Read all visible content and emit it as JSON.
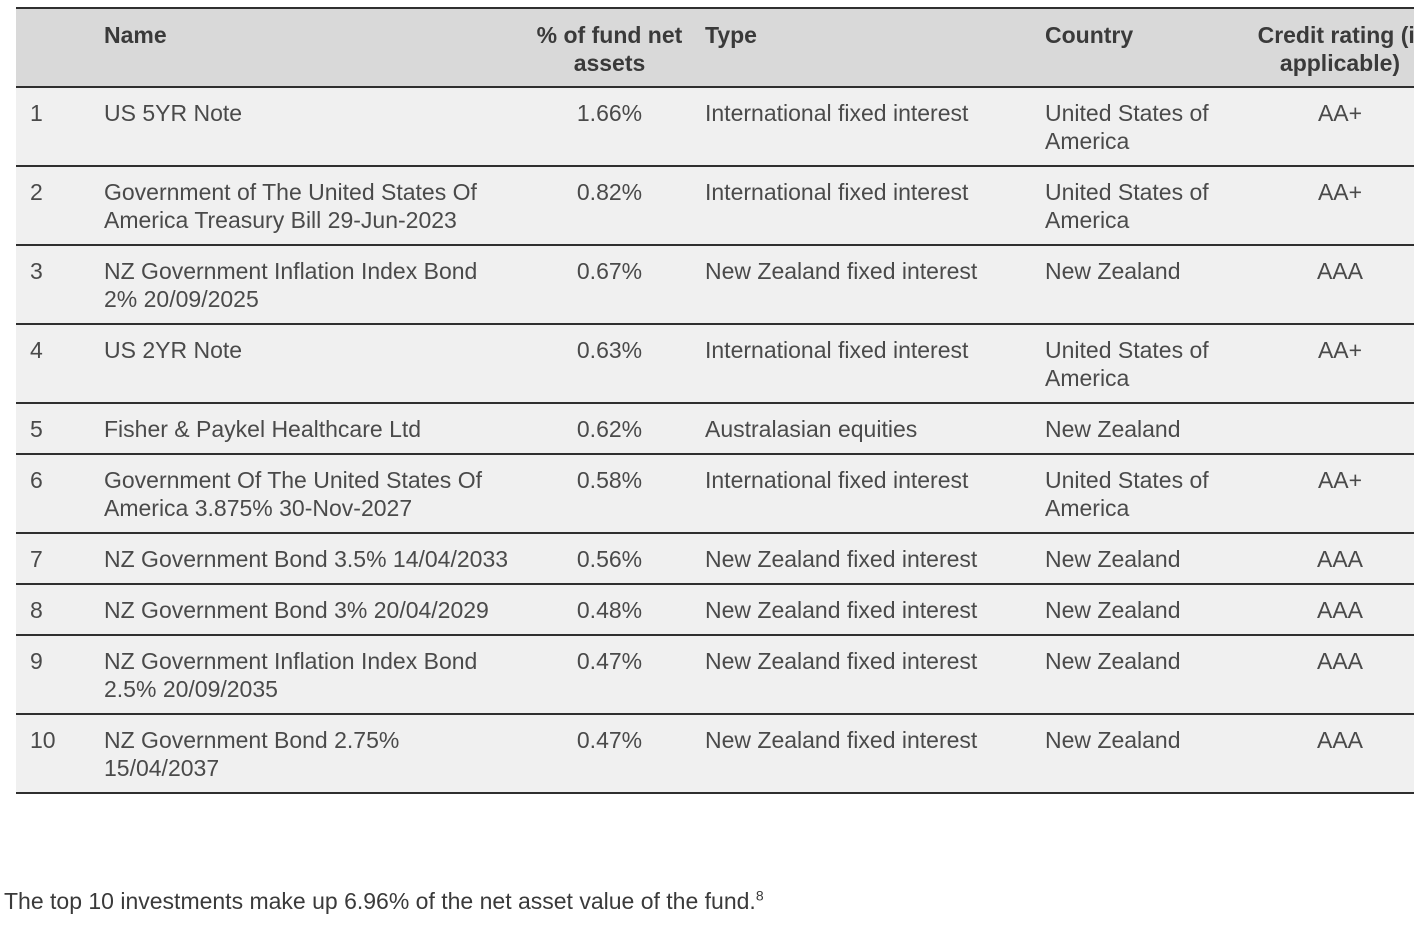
{
  "table": {
    "headers": {
      "num": "",
      "name": "Name",
      "pct": "% of fund net assets",
      "type": "Type",
      "country": "Country",
      "rating": "Credit rating (if applicable)"
    },
    "rows": [
      {
        "num": "1",
        "name": "US 5YR Note",
        "pct": "1.66%",
        "type": "International fixed interest",
        "country": "United States of America",
        "rating": "AA+"
      },
      {
        "num": "2",
        "name": "Government of The United States Of America Treasury Bill 29-Jun-2023",
        "pct": "0.82%",
        "type": "International fixed interest",
        "country": "United States of America",
        "rating": "AA+"
      },
      {
        "num": "3",
        "name": "NZ Government Inflation Index Bond 2% 20/09/2025",
        "pct": "0.67%",
        "type": "New Zealand fixed interest",
        "country": "New Zealand",
        "rating": "AAA"
      },
      {
        "num": "4",
        "name": "US 2YR Note",
        "pct": "0.63%",
        "type": "International fixed interest",
        "country": "United States of America",
        "rating": "AA+"
      },
      {
        "num": "5",
        "name": "Fisher & Paykel Healthcare Ltd",
        "pct": "0.62%",
        "type": "Australasian equities",
        "country": "New Zealand",
        "rating": ""
      },
      {
        "num": "6",
        "name": "Government Of The United States Of America 3.875% 30-Nov-2027",
        "pct": "0.58%",
        "type": "International fixed interest",
        "country": "United States of America",
        "rating": "AA+"
      },
      {
        "num": "7",
        "name": "NZ Government Bond 3.5% 14/04/2033",
        "pct": "0.56%",
        "type": "New Zealand fixed interest",
        "country": "New Zealand",
        "rating": "AAA"
      },
      {
        "num": "8",
        "name": "NZ Government Bond 3% 20/04/2029",
        "pct": "0.48%",
        "type": "New Zealand fixed interest",
        "country": "New Zealand",
        "rating": "AAA"
      },
      {
        "num": "9",
        "name": "NZ Government Inflation Index Bond 2.5% 20/09/2035",
        "pct": "0.47%",
        "type": "New Zealand fixed interest",
        "country": "New Zealand",
        "rating": "AAA"
      },
      {
        "num": "10",
        "name": "NZ Government Bond 2.75% 15/04/2037",
        "pct": "0.47%",
        "type": "New Zealand fixed interest",
        "country": "New Zealand",
        "rating": "AAA"
      }
    ]
  },
  "footnote": {
    "text": "The top 10 investments make up 6.96% of the net asset value of the fund.",
    "marker": "8"
  },
  "colors": {
    "header_bg": "#d9d9d9",
    "row_bg": "#f0f0f0",
    "rule": "#2f2f2f",
    "text": "#3a3a3a"
  }
}
